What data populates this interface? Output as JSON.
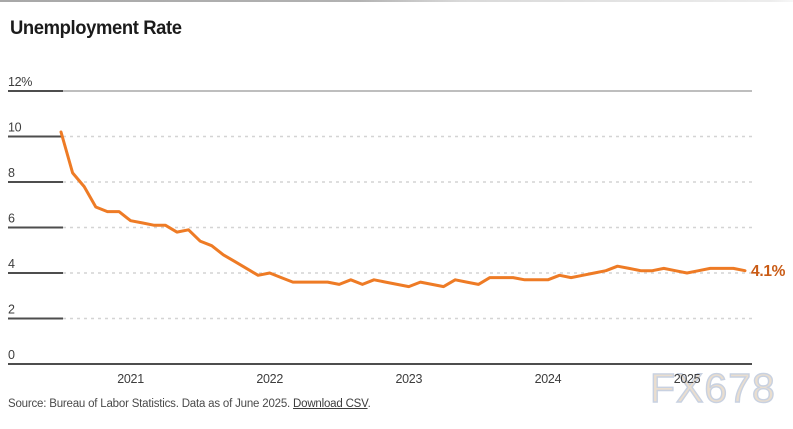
{
  "header": {
    "title": "Unemployment Rate"
  },
  "footer": {
    "source_text": "Source: Bureau of Labor Statistics. Data as of June 2025. ",
    "download_link": "Download CSV",
    "after_link": "."
  },
  "watermark": "FX678",
  "colors": {
    "line": "#EE7B25",
    "end_label": "#C95B15",
    "axis_dark": "#4d4d4d",
    "grid_light": "#d4d4d4",
    "grid_solid_top": "#a9a9a9",
    "tick_text": "#3d3d3d"
  },
  "chart_data": {
    "type": "line",
    "title": "Unemployment Rate",
    "frequency": "monthly",
    "ylim": [
      0,
      12
    ],
    "grid": "horizontal-dashed",
    "legend": "none",
    "end_annotation": "4.1%",
    "y_ticks": [
      {
        "value": 12,
        "label": "12%"
      },
      {
        "value": 10,
        "label": "10"
      },
      {
        "value": 8,
        "label": "8"
      },
      {
        "value": 6,
        "label": "6"
      },
      {
        "value": 4,
        "label": "4"
      },
      {
        "value": 2,
        "label": "2"
      },
      {
        "value": 0,
        "label": "0"
      }
    ],
    "x_ticks": [
      {
        "label": "2021",
        "index": 6
      },
      {
        "label": "2022",
        "index": 18
      },
      {
        "label": "2023",
        "index": 30
      },
      {
        "label": "2024",
        "index": 42
      },
      {
        "label": "2025",
        "index": 54
      }
    ],
    "x": [
      "2020-07",
      "2020-08",
      "2020-09",
      "2020-10",
      "2020-11",
      "2020-12",
      "2021-01",
      "2021-02",
      "2021-03",
      "2021-04",
      "2021-05",
      "2021-06",
      "2021-07",
      "2021-08",
      "2021-09",
      "2021-10",
      "2021-11",
      "2021-12",
      "2022-01",
      "2022-02",
      "2022-03",
      "2022-04",
      "2022-05",
      "2022-06",
      "2022-07",
      "2022-08",
      "2022-09",
      "2022-10",
      "2022-11",
      "2022-12",
      "2023-01",
      "2023-02",
      "2023-03",
      "2023-04",
      "2023-05",
      "2023-06",
      "2023-07",
      "2023-08",
      "2023-09",
      "2023-10",
      "2023-11",
      "2023-12",
      "2024-01",
      "2024-02",
      "2024-03",
      "2024-04",
      "2024-05",
      "2024-06",
      "2024-07",
      "2024-08",
      "2024-09",
      "2024-10",
      "2024-11",
      "2024-12",
      "2025-01",
      "2025-02",
      "2025-03",
      "2025-04",
      "2025-05",
      "2025-06"
    ],
    "values": [
      10.2,
      8.4,
      7.8,
      6.9,
      6.7,
      6.7,
      6.3,
      6.2,
      6.1,
      6.1,
      5.8,
      5.9,
      5.4,
      5.2,
      4.8,
      4.5,
      4.2,
      3.9,
      4.0,
      3.8,
      3.6,
      3.6,
      3.6,
      3.6,
      3.5,
      3.7,
      3.5,
      3.7,
      3.6,
      3.5,
      3.4,
      3.6,
      3.5,
      3.4,
      3.7,
      3.6,
      3.5,
      3.8,
      3.8,
      3.8,
      3.7,
      3.7,
      3.7,
      3.9,
      3.8,
      3.9,
      4.0,
      4.1,
      4.3,
      4.2,
      4.1,
      4.1,
      4.2,
      4.1,
      4.0,
      4.1,
      4.2,
      4.2,
      4.2,
      4.1
    ]
  }
}
